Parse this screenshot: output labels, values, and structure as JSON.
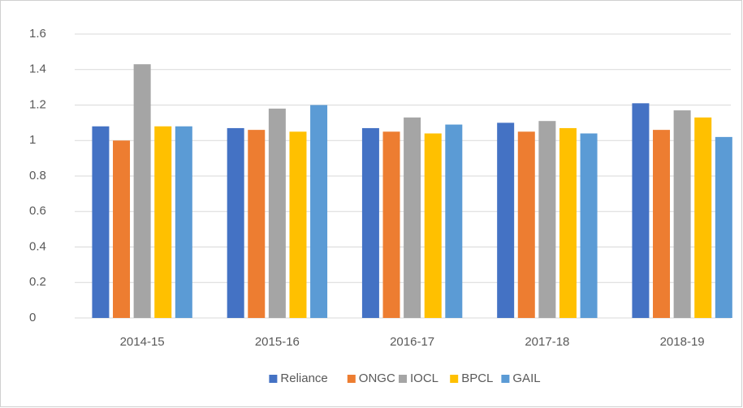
{
  "chart_data": {
    "type": "bar",
    "categories": [
      "2014-15",
      "2015-16",
      "2016-17",
      "2017-18",
      "2018-19"
    ],
    "series": [
      {
        "name": "Reliance",
        "color": "#4472c4",
        "values": [
          1.08,
          1.07,
          1.07,
          1.1,
          1.21
        ]
      },
      {
        "name": "ONGC",
        "color": "#ed7d31",
        "values": [
          1.0,
          1.06,
          1.05,
          1.05,
          1.06
        ]
      },
      {
        "name": "IOCL",
        "color": "#a5a5a5",
        "values": [
          1.43,
          1.18,
          1.13,
          1.11,
          1.17
        ]
      },
      {
        "name": "BPCL",
        "color": "#ffc000",
        "values": [
          1.08,
          1.05,
          1.04,
          1.07,
          1.13
        ]
      },
      {
        "name": "GAIL",
        "color": "#5b9bd5",
        "values": [
          1.08,
          1.2,
          1.09,
          1.04,
          1.02
        ]
      }
    ],
    "ylim": [
      0,
      1.6
    ],
    "yticks": [
      0,
      0.2,
      0.4,
      0.6,
      0.8,
      1,
      1.2,
      1.4,
      1.6
    ],
    "grid": true,
    "legend": "bottom"
  }
}
